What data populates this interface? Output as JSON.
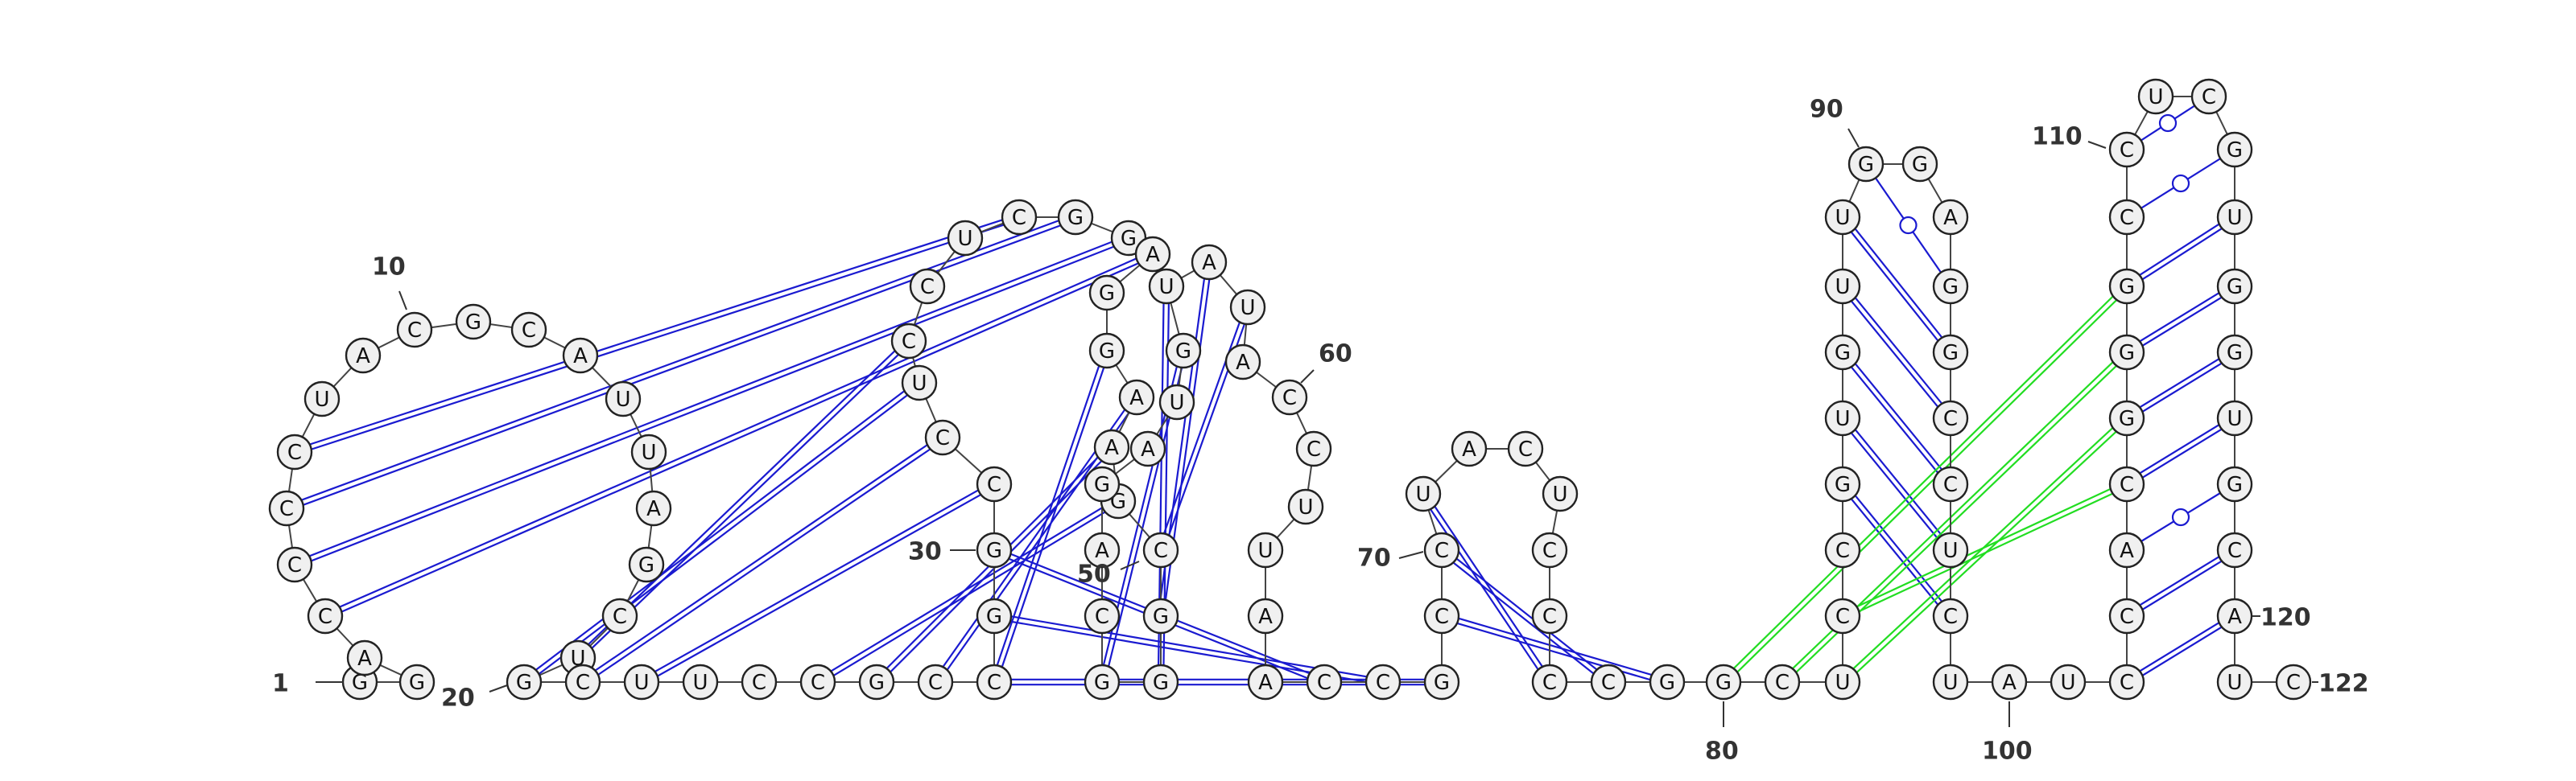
{
  "sequence": "GGACCCCUACGCAUUAGCUGCUUCCGCCGGCCUCCUCGGAGGAAGCGGGCAGAUGUAUACCUUAACCGCCUACUCCCCGGCUCCGUGUUGGAGGCCUCUAUCCACGGGCCUCGUGGUGCAUC",
  "structure_type": "RNA secondary structure (pseudoknots)",
  "position_labels": [
    {
      "pos": 1,
      "text": "1"
    },
    {
      "pos": 10,
      "text": "10"
    },
    {
      "pos": 20,
      "text": "20"
    },
    {
      "pos": 30,
      "text": "30"
    },
    {
      "pos": 50,
      "text": "50"
    },
    {
      "pos": 60,
      "text": "60"
    },
    {
      "pos": 70,
      "text": "70"
    },
    {
      "pos": 80,
      "text": "80"
    },
    {
      "pos": 90,
      "text": "90"
    },
    {
      "pos": 100,
      "text": "100"
    },
    {
      "pos": 110,
      "text": "110"
    },
    {
      "pos": 120,
      "text": "120"
    },
    {
      "pos": 122,
      "text": "122"
    }
  ],
  "base_pairs": [
    {
      "i": 4,
      "j": 40,
      "kind": "canonical"
    },
    {
      "i": 5,
      "j": 39,
      "kind": "canonical"
    },
    {
      "i": 6,
      "j": 38,
      "kind": "canonical"
    },
    {
      "i": 7,
      "j": 37,
      "kind": "canonical"
    },
    {
      "i": 19,
      "j": 34,
      "kind": "canonical"
    },
    {
      "i": 20,
      "j": 33,
      "kind": "canonical"
    },
    {
      "i": 21,
      "j": 32,
      "kind": "canonical"
    },
    {
      "i": 22,
      "j": 31,
      "kind": "canonical"
    },
    {
      "i": 25,
      "j": 45,
      "kind": "canonical"
    },
    {
      "i": 26,
      "j": 44,
      "kind": "canonical"
    },
    {
      "i": 27,
      "j": 43,
      "kind": "canonical"
    },
    {
      "i": 28,
      "j": 42,
      "kind": "canonical"
    },
    {
      "i": 46,
      "j": 58,
      "kind": "canonical"
    },
    {
      "i": 47,
      "j": 57,
      "kind": "canonical"
    },
    {
      "i": 48,
      "j": 56,
      "kind": "canonical"
    },
    {
      "i": 49,
      "j": 55,
      "kind": "canonical"
    },
    {
      "i": 30,
      "j": 66,
      "kind": "canonical"
    },
    {
      "i": 29,
      "j": 67,
      "kind": "canonical"
    },
    {
      "i": 28,
      "j": 68,
      "kind": "canonical"
    },
    {
      "i": 71,
      "j": 77,
      "kind": "canonical"
    },
    {
      "i": 70,
      "j": 78,
      "kind": "canonical"
    },
    {
      "i": 69,
      "j": 79,
      "kind": "canonical"
    },
    {
      "i": 85,
      "j": 98,
      "kind": "canonical"
    },
    {
      "i": 86,
      "j": 97,
      "kind": "canonical"
    },
    {
      "i": 87,
      "j": 96,
      "kind": "canonical"
    },
    {
      "i": 88,
      "j": 95,
      "kind": "canonical"
    },
    {
      "i": 89,
      "j": 94,
      "kind": "canonical"
    },
    {
      "i": 90,
      "j": 93,
      "kind": "wobble"
    },
    {
      "i": 102,
      "j": 120,
      "kind": "canonical"
    },
    {
      "i": 103,
      "j": 119,
      "kind": "canonical"
    },
    {
      "i": 104,
      "j": 118,
      "kind": "wobble"
    },
    {
      "i": 105,
      "j": 117,
      "kind": "canonical"
    },
    {
      "i": 106,
      "j": 116,
      "kind": "canonical"
    },
    {
      "i": 107,
      "j": 115,
      "kind": "canonical"
    },
    {
      "i": 108,
      "j": 114,
      "kind": "canonical"
    },
    {
      "i": 109,
      "j": 113,
      "kind": "wobble"
    },
    {
      "i": 110,
      "j": 112,
      "kind": "wobble"
    },
    {
      "i": 80,
      "j": 108,
      "kind": "pseudoknot"
    },
    {
      "i": 81,
      "j": 107,
      "kind": "pseudoknot"
    },
    {
      "i": 82,
      "j": 106,
      "kind": "pseudoknot"
    },
    {
      "i": 83,
      "j": 105,
      "kind": "pseudoknot"
    }
  ],
  "colors": {
    "canonical": "#1a1ad0",
    "pseudoknot": "#22dd22",
    "backbone": "#444444",
    "nucleotide_fill": "#f0f0f0",
    "nucleotide_stroke": "#222222",
    "label": "#333333"
  }
}
